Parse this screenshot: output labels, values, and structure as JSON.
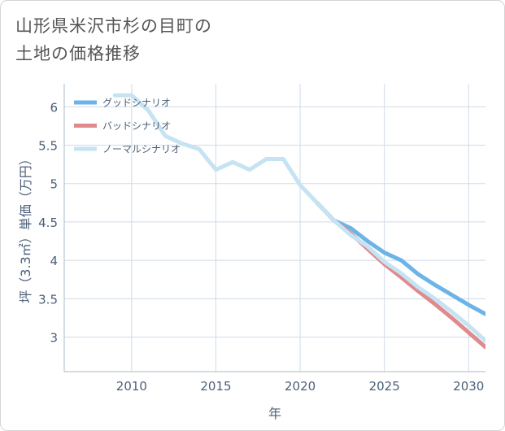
{
  "title_lines": [
    "山形県米沢市杉の目町の",
    "土地の価格推移"
  ],
  "chart_data": {
    "type": "line",
    "title": "山形県米沢市杉の目町の土地の価格推移",
    "xlabel": "年",
    "ylabel": "坪（3.3㎡）単価（万円）",
    "xlim": [
      2006,
      2031
    ],
    "ylim": [
      2.55,
      6.3
    ],
    "x_ticks": [
      2010,
      2015,
      2020,
      2025,
      2030
    ],
    "y_ticks": [
      3,
      3.5,
      4,
      4.5,
      5,
      5.5,
      6
    ],
    "grid": true,
    "legend_position": "top-left",
    "series": [
      {
        "name": "グッドシナリオ",
        "color": "#6cb4e8",
        "x": [
          2021,
          2022,
          2023,
          2024,
          2025,
          2026,
          2027,
          2028,
          2029,
          2030,
          2031
        ],
        "values": [
          4.75,
          4.52,
          4.42,
          4.25,
          4.1,
          4.0,
          3.82,
          3.68,
          3.55,
          3.42,
          3.3
        ]
      },
      {
        "name": "バッドシナリオ",
        "color": "#e08a8e",
        "x": [
          2021,
          2022,
          2023,
          2024,
          2025,
          2026,
          2027,
          2028,
          2029,
          2030,
          2031
        ],
        "values": [
          4.75,
          4.52,
          4.35,
          4.15,
          3.95,
          3.78,
          3.6,
          3.43,
          3.25,
          3.06,
          2.87
        ]
      },
      {
        "name": "ノーマルシナリオ",
        "color": "#c5e3f2",
        "x": [
          2009,
          2010,
          2011,
          2012,
          2013,
          2014,
          2015,
          2016,
          2017,
          2018,
          2019,
          2020,
          2021,
          2022,
          2023,
          2024,
          2025,
          2026,
          2027,
          2028,
          2029,
          2030,
          2031
        ],
        "values": [
          6.15,
          6.15,
          5.95,
          5.62,
          5.52,
          5.45,
          5.18,
          5.28,
          5.18,
          5.32,
          5.32,
          4.98,
          4.75,
          4.52,
          4.33,
          4.18,
          3.98,
          3.83,
          3.65,
          3.5,
          3.33,
          3.15,
          2.95
        ]
      }
    ]
  }
}
